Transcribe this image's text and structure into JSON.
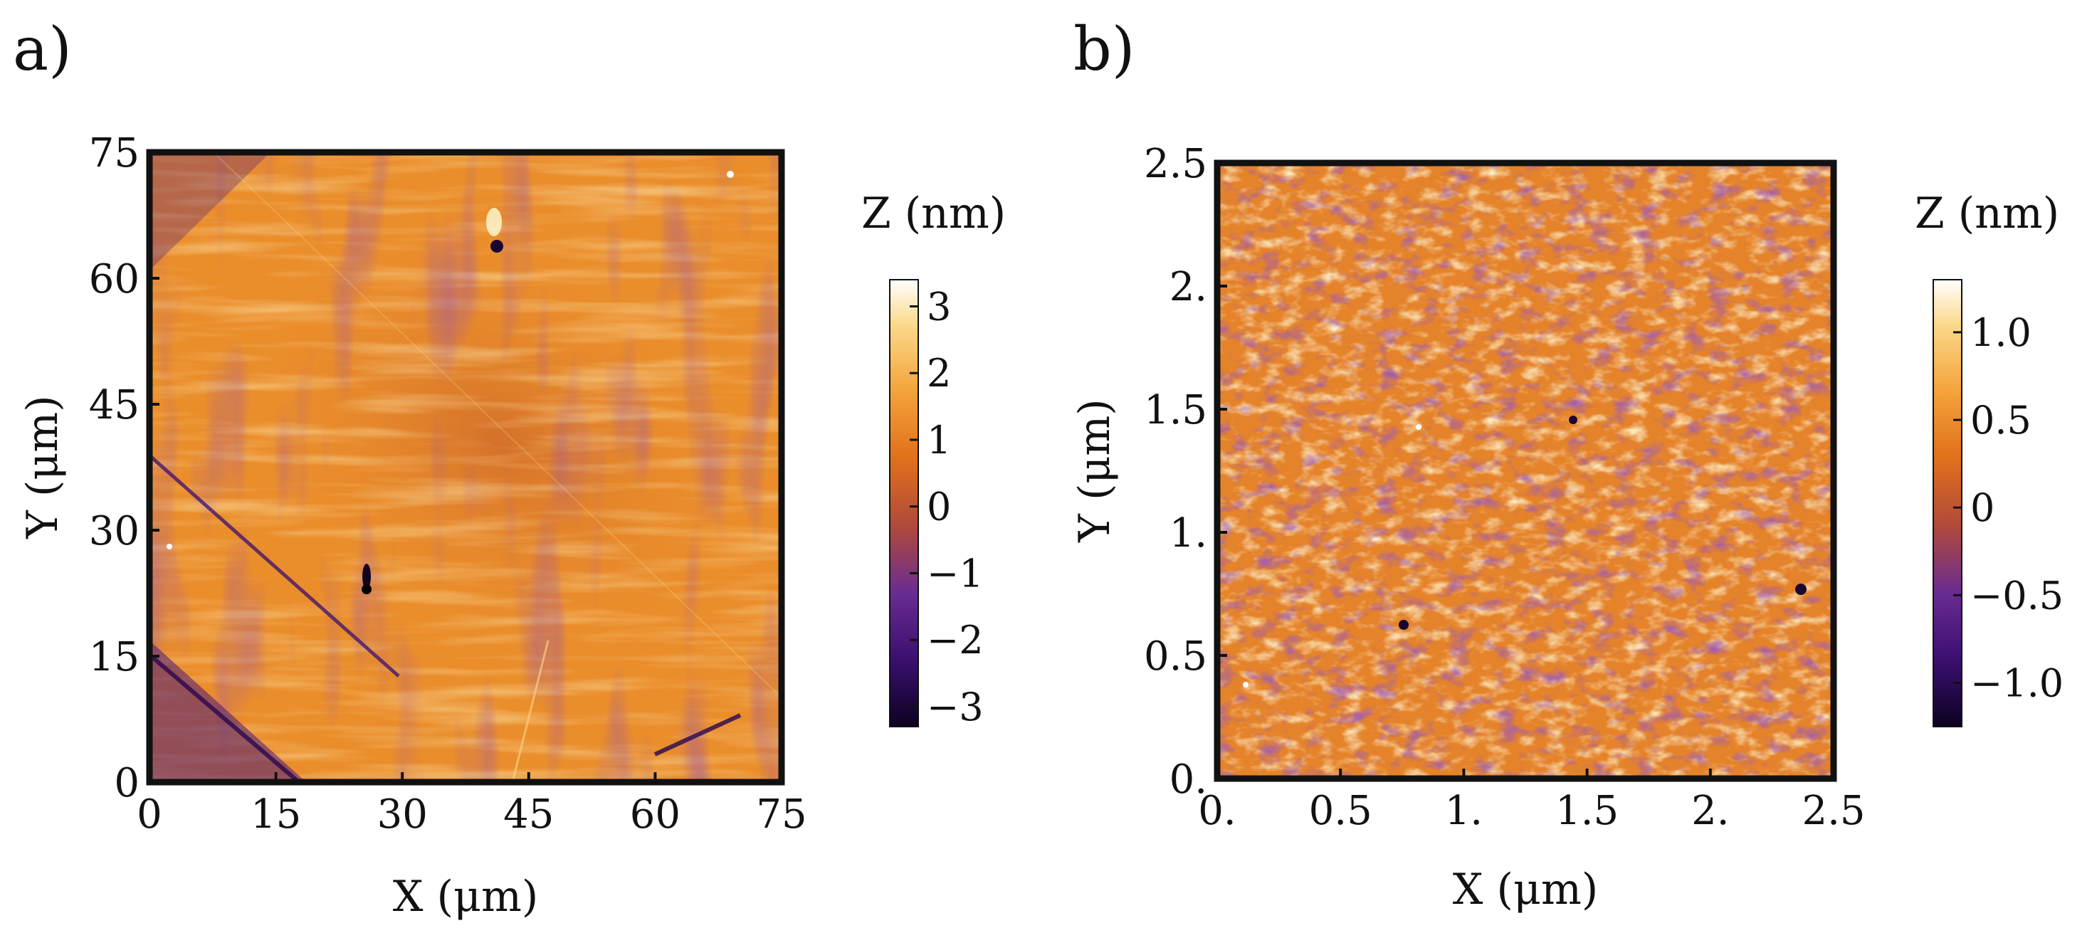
{
  "colors": {
    "cmap": [
      "#0d0221",
      "#3b0f70",
      "#6a2c91",
      "#b14a3a",
      "#e0701c",
      "#f4a33a",
      "#fbd98c",
      "#ffffff"
    ],
    "frame": "#111111",
    "background": "#ffffff"
  },
  "chart_data": [
    {
      "type": "heatmap",
      "panel_label": "a)",
      "xlabel": "X (μm)",
      "ylabel": "Y (μm)",
      "xlim": [
        0,
        75
      ],
      "ylim": [
        0,
        75
      ],
      "xticks": [
        0,
        15,
        30,
        45,
        60,
        75
      ],
      "xtick_labels": [
        "0",
        "15",
        "30",
        "45",
        "60",
        "75"
      ],
      "yticks": [
        0,
        15,
        30,
        45,
        60,
        75
      ],
      "ytick_labels": [
        "0",
        "15",
        "30",
        "45",
        "60",
        "75"
      ],
      "colorbar": {
        "title": "Z (nm)",
        "range": [
          -3.3,
          3.4
        ],
        "ticks": [
          3,
          2,
          1,
          0,
          -1,
          -2,
          -3
        ],
        "tick_labels": [
          "3",
          "2",
          "1",
          "0",
          "−1",
          "−2",
          "−3"
        ]
      }
    },
    {
      "type": "heatmap",
      "panel_label": "b)",
      "xlabel": "X (μm)",
      "ylabel": "Y (μm)",
      "xlim": [
        0,
        2.5
      ],
      "ylim": [
        0,
        2.5
      ],
      "xticks": [
        0,
        0.5,
        1,
        1.5,
        2,
        2.5
      ],
      "xtick_labels": [
        "0.",
        "0.5",
        "1.",
        "1.5",
        "2.",
        "2.5"
      ],
      "yticks": [
        0,
        0.5,
        1,
        1.5,
        2,
        2.5
      ],
      "ytick_labels": [
        "0.",
        "0.5",
        "1.",
        "1.5",
        "2.",
        "2.5"
      ],
      "colorbar": {
        "title": "Z (nm)",
        "range": [
          -1.25,
          1.3
        ],
        "ticks": [
          1.0,
          0.5,
          0,
          -0.5,
          -1.0
        ],
        "tick_labels": [
          "1.0",
          "0.5",
          "0",
          "−0.5",
          "−1.0"
        ]
      }
    }
  ]
}
